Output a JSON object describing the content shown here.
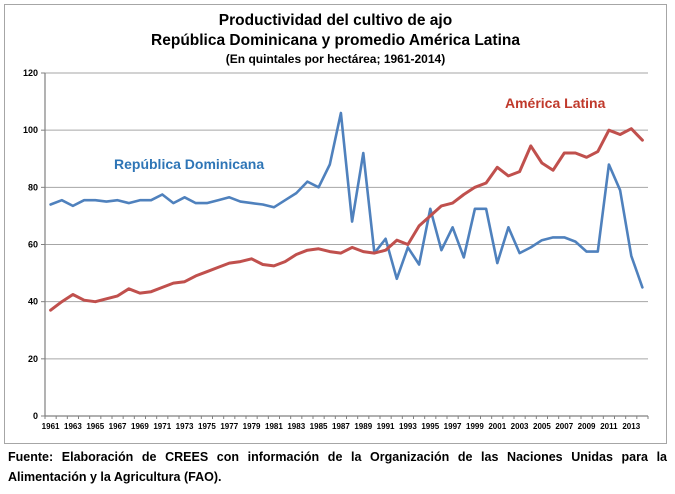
{
  "figure": {
    "title_line1": "Productividad del cultivo de ajo",
    "title_line2": "República Dominicana y promedio América Latina",
    "subtitle": "(En quintales por hectárea; 1961-2014)"
  },
  "chart_data": {
    "type": "line",
    "x": [
      1961,
      1962,
      1963,
      1964,
      1965,
      1966,
      1967,
      1968,
      1969,
      1970,
      1971,
      1972,
      1973,
      1974,
      1975,
      1976,
      1977,
      1978,
      1979,
      1980,
      1981,
      1982,
      1983,
      1984,
      1985,
      1986,
      1987,
      1988,
      1989,
      1990,
      1991,
      1992,
      1993,
      1994,
      1995,
      1996,
      1997,
      1998,
      1999,
      2000,
      2001,
      2002,
      2003,
      2004,
      2005,
      2006,
      2007,
      2008,
      2009,
      2010,
      2011,
      2012,
      2013,
      2014
    ],
    "series": [
      {
        "name": "República Dominicana",
        "color": "#4f81bd",
        "label_color": "#2e75b6",
        "values": [
          74,
          75.5,
          73.5,
          75.5,
          75.5,
          75,
          75.5,
          74.5,
          75.5,
          75.5,
          77.5,
          74.5,
          76.5,
          74.5,
          74.5,
          75.5,
          76.5,
          75,
          74.5,
          74,
          73,
          75.5,
          78,
          82,
          80,
          88,
          106,
          68,
          92,
          57,
          62,
          48,
          59,
          53,
          72.5,
          58,
          66,
          55.5,
          72.5,
          72.5,
          53.5,
          66,
          57,
          59,
          61.5,
          62.5,
          62.5,
          61,
          57.5,
          57.5,
          88,
          79,
          56,
          45
        ]
      },
      {
        "name": "América Latina",
        "color": "#c0504d",
        "label_color": "#c0392b",
        "values": [
          37,
          40,
          42.5,
          40.5,
          40,
          41,
          42,
          44.5,
          43,
          43.5,
          45,
          46.5,
          47,
          49,
          50.5,
          52,
          53.5,
          54,
          55,
          53,
          52.5,
          54,
          56.5,
          58,
          58.5,
          57.5,
          57,
          59,
          57.5,
          57,
          58,
          61.5,
          60,
          66.5,
          70,
          73.5,
          74.5,
          77.5,
          80,
          81.5,
          87,
          84,
          85.5,
          94.5,
          88.5,
          86,
          92,
          92,
          90.5,
          92.5,
          100,
          98.5,
          100.5,
          96.5
        ]
      }
    ],
    "ylim": [
      0,
      120
    ],
    "yticks": [
      0,
      20,
      40,
      60,
      80,
      100,
      120
    ],
    "xtick_labels": [
      "1961",
      "1963",
      "1965",
      "1967",
      "1969",
      "1971",
      "1973",
      "1975",
      "1977",
      "1979",
      "1981",
      "1983",
      "1985",
      "1987",
      "1989",
      "1991",
      "1993",
      "1995",
      "1997",
      "1999",
      "2001",
      "2003",
      "2005",
      "2007",
      "2009",
      "2011",
      "2013"
    ],
    "grid": "horizontal",
    "legend_position": "inline-labels",
    "grid_color": "#a6a6a6",
    "axis_color": "#808080"
  },
  "footer": {
    "source_text": "Fuente: Elaboración de CREES con información de la Organización de las Naciones Unidas para la Alimentación y la Agricultura (FAO)."
  }
}
